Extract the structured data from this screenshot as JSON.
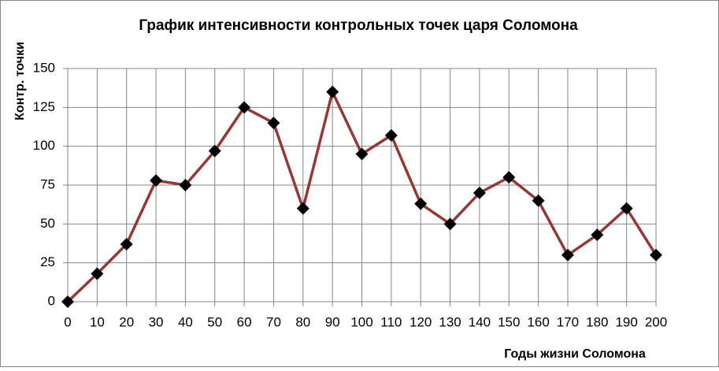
{
  "chart_data": {
    "type": "line",
    "title": "График интенсивности контрольных точек  царя Соломона",
    "x_label": "Годы жизни Соломона",
    "y_label": "Контр. точки",
    "x": [
      0,
      10,
      20,
      30,
      40,
      50,
      60,
      70,
      80,
      90,
      100,
      110,
      120,
      130,
      140,
      150,
      160,
      170,
      180,
      190,
      200
    ],
    "series": [
      {
        "name": "Контр. точки",
        "color": "#953735",
        "marker_color": "#000000",
        "values": [
          0,
          18,
          37,
          78,
          75,
          97,
          125,
          115,
          60,
          135,
          95,
          107,
          63,
          50,
          70,
          80,
          65,
          30,
          43,
          60,
          30
        ]
      }
    ],
    "xlim": [
      0,
      200
    ],
    "xticks": [
      0,
      10,
      20,
      30,
      40,
      50,
      60,
      70,
      80,
      90,
      100,
      110,
      120,
      130,
      140,
      150,
      160,
      170,
      180,
      190,
      200
    ],
    "ylim": [
      0,
      150
    ],
    "yticks": [
      0,
      25,
      50,
      75,
      100,
      125,
      150
    ],
    "grid": true
  }
}
